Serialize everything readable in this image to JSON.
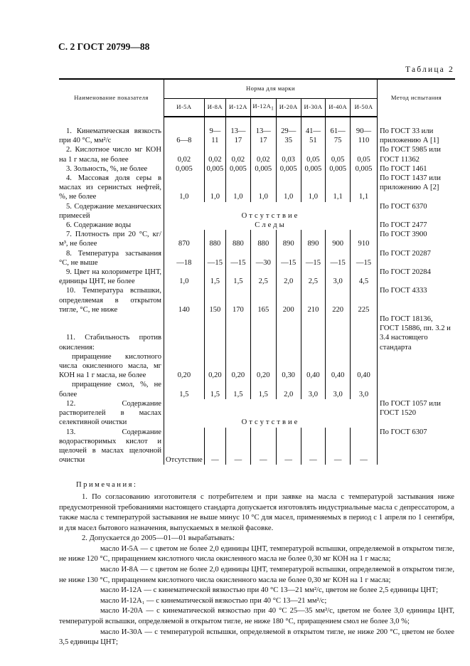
{
  "header": {
    "page_label": "С. 2 ГОСТ 20799—88"
  },
  "table": {
    "caption": "Таблица 2",
    "col_name": "Наименование показателя",
    "col_norm": "Норма для марки",
    "col_method": "Метод испытания",
    "marks": [
      "И-5А",
      "И-8А",
      "И-12А",
      "И-12А",
      "И-20А",
      "И-30А",
      "И-40А",
      "И-50А"
    ],
    "mark4_sub": "1",
    "rows": [
      {
        "name": "1. Кинематическая вязкость при 40 °С, мм²/с",
        "values": [
          "6—8",
          "9—11",
          "13—17",
          "13—17",
          "29—35",
          "41—51",
          "61—75",
          "90—110"
        ],
        "method": "По ГОСТ 33 или приложению А [1]"
      },
      {
        "name": "2. Кислотное число мг КОН на 1 г масла, не более",
        "values": [
          "0,02",
          "0,02",
          "0,02",
          "0,02",
          "0,03",
          "0,05",
          "0,05",
          "0,05"
        ],
        "method": "По ГОСТ 5985 или ГОСТ 11362"
      },
      {
        "name": "3. Зольность, %, не более",
        "values": [
          "0,005",
          "0,005",
          "0,005",
          "0,005",
          "0,005",
          "0,005",
          "0,005",
          "0,005"
        ],
        "method": "По ГОСТ 1461"
      },
      {
        "name": "4. Массовая доля серы в маслах из сернистых нефтей, %, не более",
        "values": [
          "1,0",
          "1,0",
          "1,0",
          "1,0",
          "1,0",
          "1,0",
          "1,1",
          "1,1"
        ],
        "method": "По ГОСТ 1437 или приложению А [2]"
      },
      {
        "name": "5. Содержание механических примесей",
        "span": "Отсутствие",
        "method": "По ГОСТ 6370"
      },
      {
        "name": "6. Содержание воды",
        "span": "Следы",
        "method": "По ГОСТ 2477"
      },
      {
        "name": "7. Плотность при 20 °С, кг/м³, не более",
        "values": [
          "870",
          "880",
          "880",
          "880",
          "890",
          "890",
          "900",
          "910"
        ],
        "method": "По ГОСТ 3900"
      },
      {
        "name": "8. Температура застывания °С, не выше",
        "values": [
          "—18",
          "—15",
          "—15",
          "—30",
          "—15",
          "—15",
          "—15",
          "—15"
        ],
        "method": "По ГОСТ 20287"
      },
      {
        "name": "9. Цвет на колориметре ЦНТ, единицы ЦНТ, не более",
        "values": [
          "1,0",
          "1,5",
          "1,5",
          "2,5",
          "2,0",
          "2,5",
          "3,0",
          "4,5"
        ],
        "method": "По ГОСТ 20284"
      },
      {
        "name": "10. Температура вспышки, определяемая в открытом тигле, °С, не ниже",
        "values": [
          "140",
          "150",
          "170",
          "165",
          "200",
          "210",
          "220",
          "225"
        ],
        "method": "По ГОСТ 4333"
      },
      {
        "name": "11. Стабильность против окисления:",
        "values": [
          "",
          "",
          "",
          "",
          "",
          "",
          "",
          ""
        ],
        "method": "По ГОСТ 18136, ГОСТ 15886, пп. 3.2 и 3.4 настоящего стандарта"
      },
      {
        "name": "приращение кислотного числа окисленного масла, мг КОН на 1 г масла, не более",
        "values": [
          "0,20",
          "0,20",
          "0,20",
          "0,20",
          "0,30",
          "0,40",
          "0,40",
          "0,40"
        ],
        "method": ""
      },
      {
        "name": "приращение смол, %, не более",
        "values": [
          "1,5",
          "1,5",
          "1,5",
          "1,5",
          "2,0",
          "3,0",
          "3,0",
          "3,0"
        ],
        "method": ""
      },
      {
        "name": "12. Содержание растворителей в маслах селективной очистки",
        "span": "Отсутствие",
        "method": "По ГОСТ 1057 или ГОСТ 1520"
      },
      {
        "name": "13. Содержание водорастворимых кислот и щелочей в маслах щелочной очистки",
        "values": [
          "Отсутствие",
          "—",
          "—",
          "—",
          "—",
          "—",
          "—",
          "—"
        ],
        "method": "По ГОСТ 6307"
      }
    ]
  },
  "notes": {
    "title": "Примечания:",
    "n1": "1. По согласованию изготовителя с потребителем и при заявке на масла с температурой застывания ниже предусмотренной требованиями настоящего стандарта допускается изготовлять индустриальные масла с депрессатором, а также масла с температурой застывания не выше минус 10 °С для масел, применяемых в период с 1 апреля по 1 сентября, и для масел бытового назначения, выпускаемых в мелкой фасовке.",
    "n2": "2. Допускается до 2005—01—01 вырабатывать:",
    "items": [
      "масло И-5А — с цветом не более 2,0 единицы ЦНТ, температурой вспышки, определяемой в открытом тигле, не ниже 120 °С, приращением кислотного числа окисленного масла не более 0,30 мг КОН на 1 г масла;",
      "масло И-8А — с цветом не более 2,0 единицы ЦНТ, температурой вспышки, определяемой в открытом тигле, не ниже 130 °С, приращением кислотного числа окисленного масла не более 0,30 мг КОН на 1 г масла;",
      "масло И-12А — с кинематической вязкостью при 40 °С 13—21 мм²/с, цветом не более 2,5 единицы ЦНТ;",
      "масло И-12А₁ — с кинематической вязкостью при 40 °С 13—21 мм²/с;",
      "масло И-20А — с кинематической вязкостью при 40 °С 25—35 мм²/с, цветом не более 3,0 единицы ЦНТ, температурой вспышки, определяемой в открытом тигле, не ниже 180 °С, приращением смол не более 3,0 %;",
      "масло И-30А — с температурой вспышки, определяемой в открытом тигле, не ниже 200 °С, цветом не более 3,5 единицы ЦНТ;"
    ]
  }
}
